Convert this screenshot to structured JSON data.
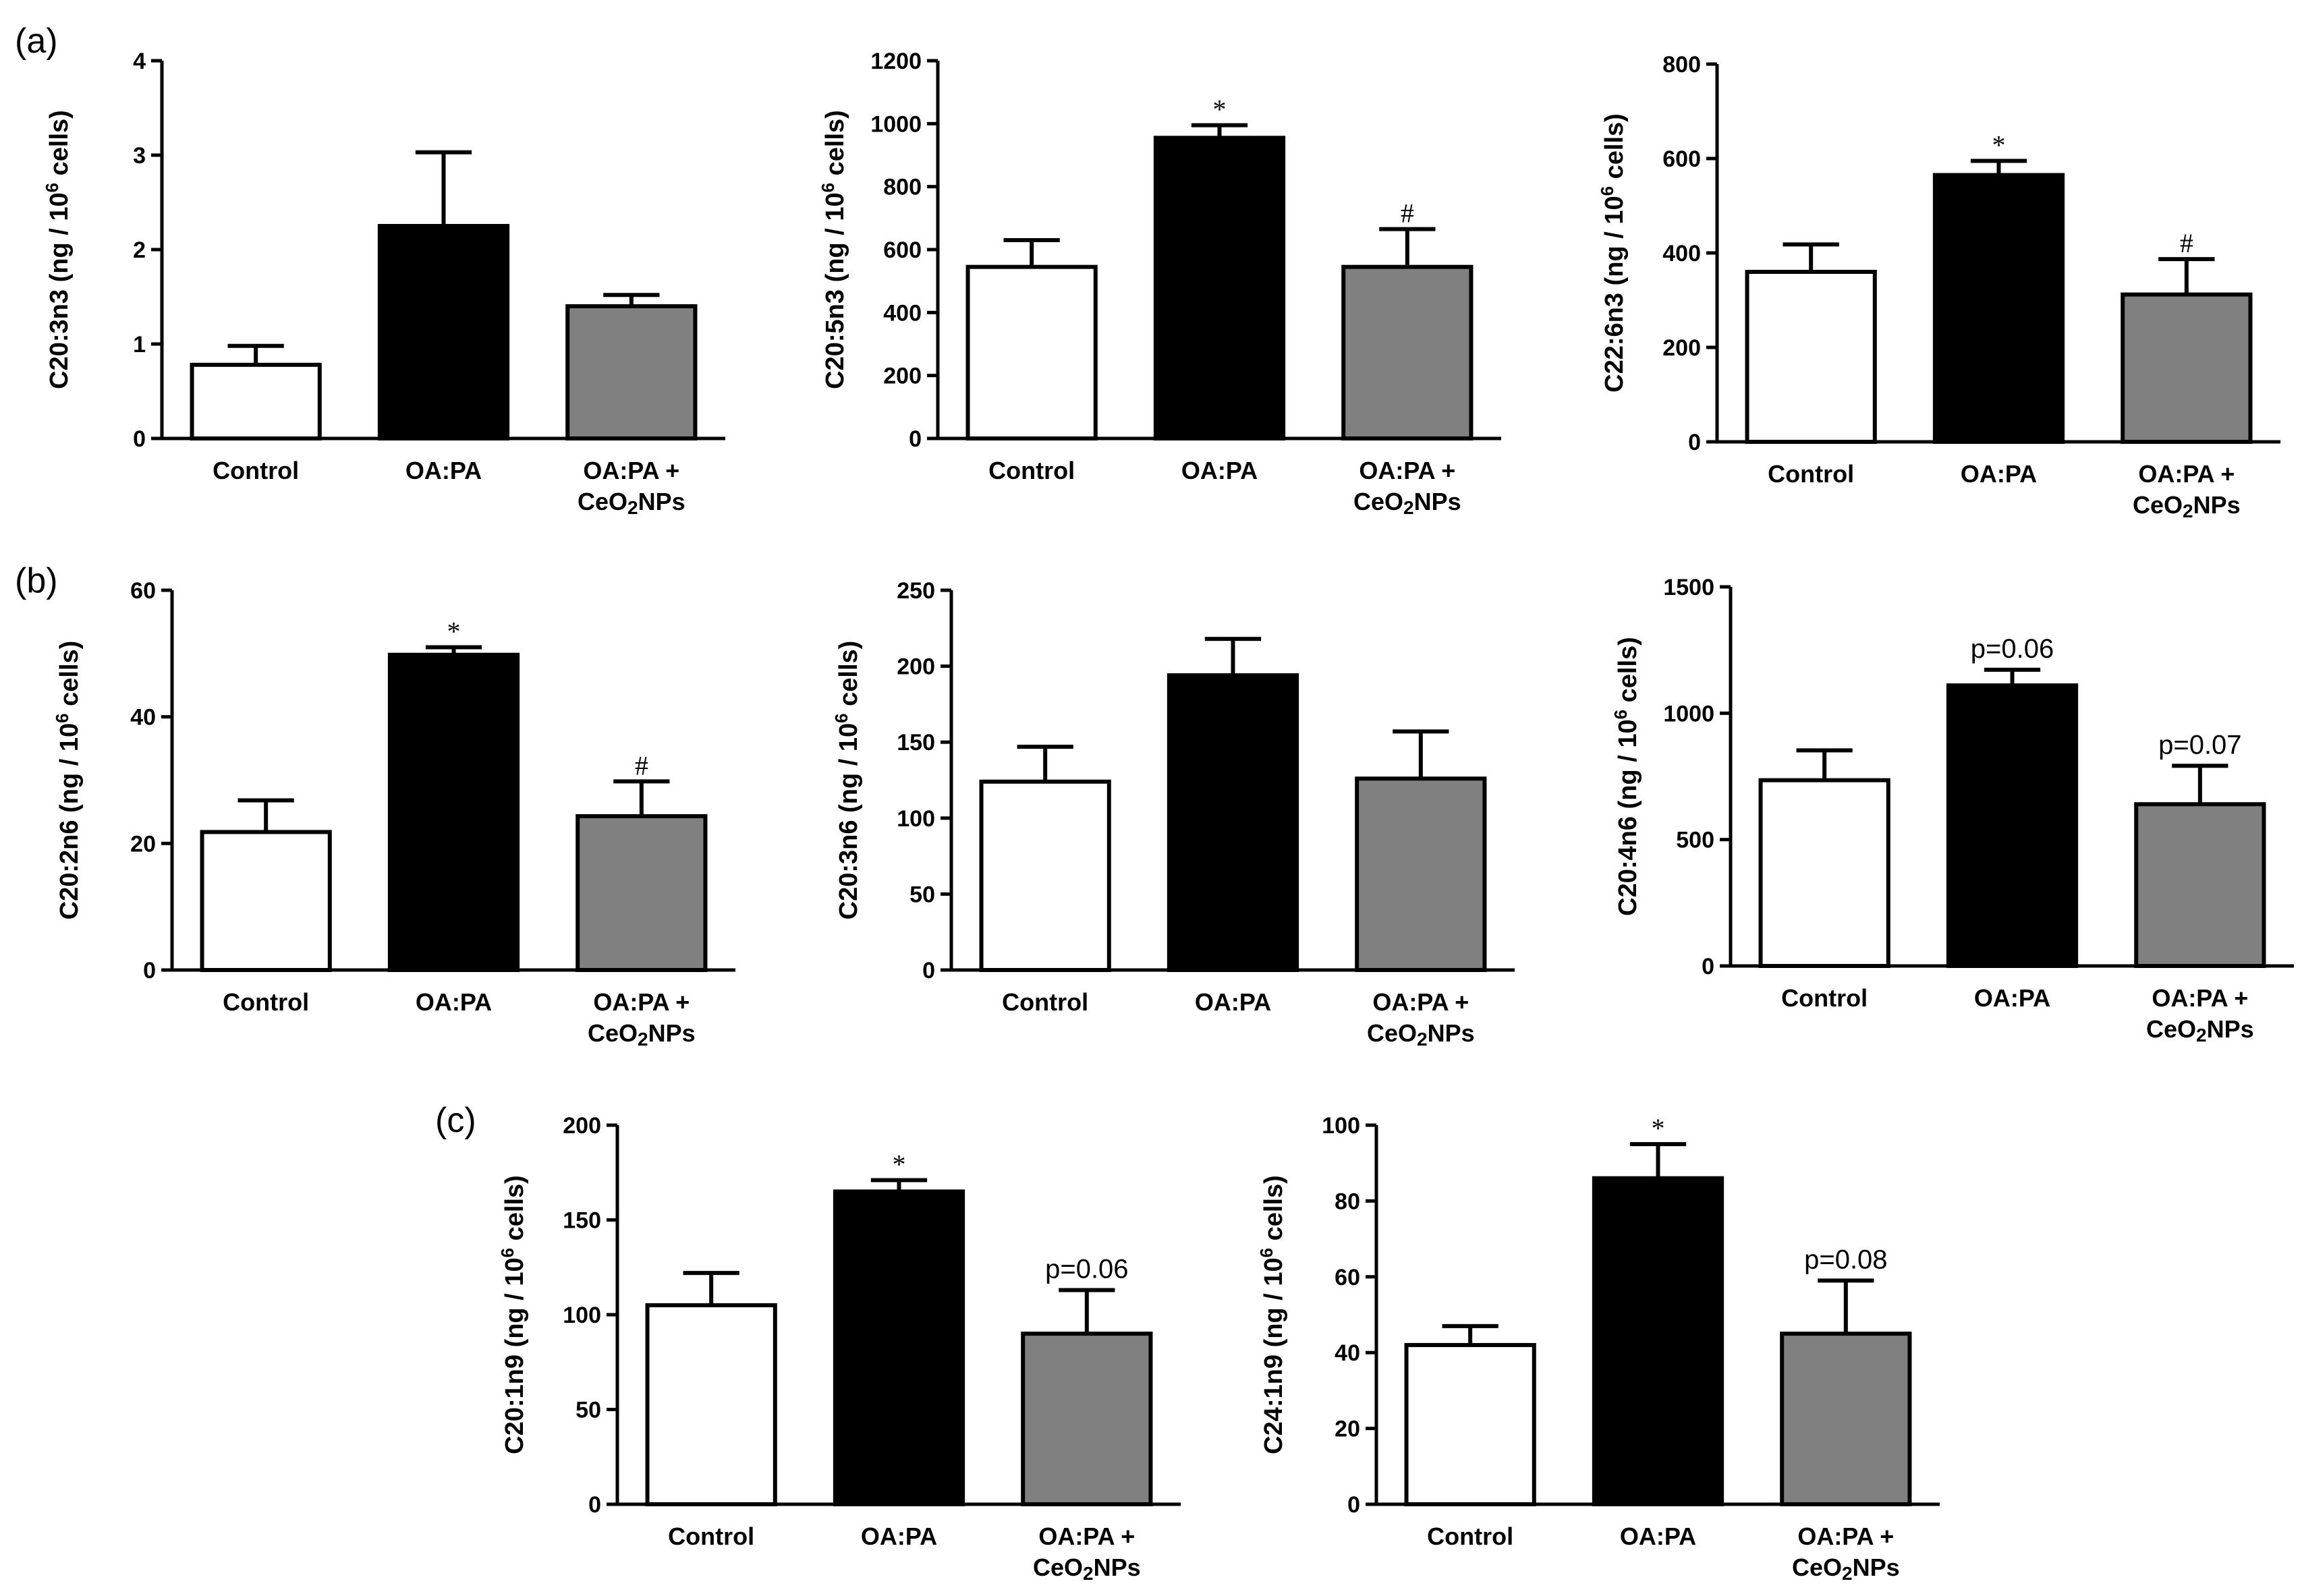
{
  "panel_labels": [
    "(a)",
    "(b)",
    "(c)"
  ],
  "chart_data": [
    {
      "id": "a1",
      "panel": "a",
      "type": "bar",
      "categories": [
        "Control",
        "OA:PA",
        "OA:PA + CeO2NPs"
      ],
      "values": [
        0.78,
        2.25,
        1.4
      ],
      "errors": [
        0.2,
        0.78,
        0.12
      ],
      "annotations": [
        "",
        "",
        ""
      ],
      "ylabel": "C20:3n3 (ng / 10^6 cells)",
      "ylim": [
        0,
        4
      ],
      "yticks": [
        0,
        1,
        2,
        3,
        4
      ],
      "colors": [
        "#ffffff",
        "#000000",
        "#808080"
      ],
      "xlabel": ""
    },
    {
      "id": "a2",
      "panel": "a",
      "type": "bar",
      "categories": [
        "Control",
        "OA:PA",
        "OA:PA + CeO2NPs"
      ],
      "values": [
        545,
        955,
        545
      ],
      "errors": [
        85,
        40,
        120
      ],
      "annotations": [
        "",
        "*",
        "#"
      ],
      "ylabel": "C20:5n3 (ng / 10^6 cells)",
      "ylim": [
        0,
        1200
      ],
      "yticks": [
        0,
        200,
        400,
        600,
        800,
        1000,
        1200
      ],
      "colors": [
        "#ffffff",
        "#000000",
        "#808080"
      ],
      "xlabel": ""
    },
    {
      "id": "a3",
      "panel": "a",
      "type": "bar",
      "categories": [
        "Control",
        "OA:PA",
        "OA:PA + CeO2NPs"
      ],
      "values": [
        360,
        565,
        312
      ],
      "errors": [
        58,
        30,
        75
      ],
      "annotations": [
        "",
        "*",
        "#"
      ],
      "ylabel": "C22:6n3 (ng / 10^6 cells)",
      "ylim": [
        0,
        800
      ],
      "yticks": [
        0,
        200,
        400,
        600,
        800
      ],
      "colors": [
        "#ffffff",
        "#000000",
        "#808080"
      ],
      "xlabel": ""
    },
    {
      "id": "b1",
      "panel": "b",
      "type": "bar",
      "categories": [
        "Control",
        "OA:PA",
        "OA:PA + CeO2NPs"
      ],
      "values": [
        21.8,
        49.8,
        24.3
      ],
      "errors": [
        5,
        1.2,
        5.5
      ],
      "annotations": [
        "",
        "*",
        "#"
      ],
      "ylabel": "C20:2n6 (ng / 10^6 cells)",
      "ylim": [
        0,
        60
      ],
      "yticks": [
        0,
        20,
        40,
        60
      ],
      "colors": [
        "#ffffff",
        "#000000",
        "#808080"
      ],
      "xlabel": ""
    },
    {
      "id": "b2",
      "panel": "b",
      "type": "bar",
      "categories": [
        "Control",
        "OA:PA",
        "OA:PA + CeO2NPs"
      ],
      "values": [
        124,
        194,
        126
      ],
      "errors": [
        23,
        24,
        31
      ],
      "annotations": [
        "",
        "",
        ""
      ],
      "ylabel": "C20:3n6 (ng / 10^6 cells)",
      "ylim": [
        0,
        250
      ],
      "yticks": [
        0,
        50,
        100,
        150,
        200,
        250
      ],
      "colors": [
        "#ffffff",
        "#000000",
        "#808080"
      ],
      "xlabel": ""
    },
    {
      "id": "b3",
      "panel": "b",
      "type": "bar",
      "categories": [
        "Control",
        "OA:PA",
        "OA:PA + CeO2NPs"
      ],
      "values": [
        735,
        1110,
        640
      ],
      "errors": [
        118,
        62,
        152
      ],
      "annotations": [
        "",
        "p=0.06",
        "p=0.07"
      ],
      "ylabel": "C20:4n6 (ng / 10^6 cells)",
      "ylim": [
        0,
        1500
      ],
      "yticks": [
        0,
        500,
        1000,
        1500
      ],
      "colors": [
        "#ffffff",
        "#000000",
        "#808080"
      ],
      "xlabel": ""
    },
    {
      "id": "c1",
      "panel": "c",
      "type": "bar",
      "categories": [
        "Control",
        "OA:PA",
        "OA:PA + CeO2NPs"
      ],
      "values": [
        105,
        165,
        90
      ],
      "errors": [
        17,
        6,
        23
      ],
      "annotations": [
        "",
        "*",
        "p=0.06"
      ],
      "ylabel": "C20:1n9 (ng / 10^6 cells)",
      "ylim": [
        0,
        200
      ],
      "yticks": [
        0,
        50,
        100,
        150,
        200
      ],
      "colors": [
        "#ffffff",
        "#000000",
        "#808080"
      ],
      "xlabel": ""
    },
    {
      "id": "c2",
      "panel": "c",
      "type": "bar",
      "categories": [
        "Control",
        "OA:PA",
        "OA:PA + CeO2NPs"
      ],
      "values": [
        42,
        86,
        45
      ],
      "errors": [
        5,
        9,
        14
      ],
      "annotations": [
        "",
        "*",
        "p=0.08"
      ],
      "ylabel": "C24:1n9 (ng / 10^6 cells)",
      "ylim": [
        0,
        100
      ],
      "yticks": [
        0,
        20,
        40,
        60,
        80,
        100
      ],
      "colors": [
        "#ffffff",
        "#000000",
        "#808080"
      ],
      "xlabel": ""
    }
  ]
}
